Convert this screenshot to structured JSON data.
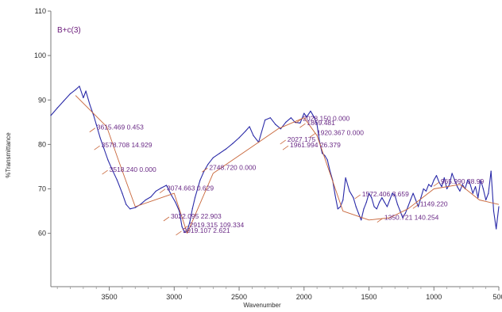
{
  "chart_data": {
    "type": "line",
    "title": "B+c(3)",
    "xlabel": "Wavenumber",
    "ylabel": "%Transmittance",
    "xlim": [
      3950,
      500
    ],
    "ylim": [
      48,
      110
    ],
    "x_ticks": [
      "3500",
      "3000",
      "2500",
      "2000",
      "1500",
      "1000",
      "500"
    ],
    "y_ticks": [
      "60",
      "70",
      "80",
      "90",
      "100",
      "110"
    ],
    "series": [
      {
        "color": "#2a2aa8",
        "x": [
          3950,
          3900,
          3850,
          3800,
          3760,
          3730,
          3700,
          3680,
          3650,
          3620,
          3600,
          3570,
          3540,
          3510,
          3480,
          3440,
          3400,
          3370,
          3340,
          3300,
          3260,
          3220,
          3180,
          3140,
          3100,
          3060,
          3020,
          2990,
          2960,
          2940,
          2920,
          2900,
          2880,
          2860,
          2840,
          2820,
          2800,
          2770,
          2740,
          2700,
          2650,
          2600,
          2550,
          2500,
          2450,
          2420,
          2390,
          2350,
          2300,
          2260,
          2220,
          2180,
          2140,
          2100,
          2070,
          2030,
          2000,
          1980,
          1950,
          1920,
          1900,
          1880,
          1860,
          1840,
          1820,
          1800,
          1780,
          1760,
          1740,
          1720,
          1700,
          1680,
          1650,
          1620,
          1600,
          1580,
          1560,
          1540,
          1520,
          1500,
          1480,
          1460,
          1440,
          1420,
          1400,
          1380,
          1360,
          1340,
          1320,
          1300,
          1280,
          1260,
          1240,
          1220,
          1200,
          1180,
          1160,
          1140,
          1120,
          1100,
          1080,
          1060,
          1040,
          1020,
          1000,
          980,
          960,
          940,
          920,
          900,
          880,
          860,
          840,
          820,
          800,
          780,
          760,
          740,
          720,
          700,
          680,
          660,
          640,
          620,
          600,
          580,
          560,
          540,
          520,
          500
        ],
        "values": [
          86.5,
          88.2,
          89.8,
          91.4,
          92.3,
          93.1,
          90.5,
          92.0,
          89.0,
          86.5,
          84.5,
          81.5,
          79.0,
          76.5,
          74.5,
          72.0,
          69.0,
          66.5,
          65.5,
          65.8,
          66.5,
          67.5,
          68.2,
          69.5,
          70.2,
          70.8,
          68.5,
          67.0,
          65.0,
          61.5,
          60.2,
          60.5,
          62.5,
          65.5,
          68.0,
          70.0,
          72.0,
          74.0,
          75.5,
          77.0,
          78.0,
          79.0,
          80.2,
          81.5,
          83.0,
          84.0,
          82.0,
          80.5,
          85.5,
          86.0,
          84.5,
          83.5,
          85.0,
          86.0,
          85.0,
          84.8,
          87.0,
          86.2,
          87.5,
          86.0,
          84.5,
          80.5,
          78.0,
          77.5,
          76.5,
          74.0,
          72.0,
          68.5,
          65.5,
          66.0,
          67.5,
          72.5,
          69.5,
          68.0,
          66.0,
          64.5,
          63.0,
          65.5,
          67.0,
          69.0,
          68.0,
          66.0,
          65.5,
          67.0,
          68.0,
          67.0,
          66.0,
          67.5,
          69.0,
          68.5,
          66.5,
          65.0,
          63.5,
          64.5,
          66.0,
          67.5,
          69.0,
          67.5,
          66.0,
          68.0,
          70.0,
          69.5,
          71.0,
          70.5,
          72.0,
          73.0,
          71.5,
          70.5,
          72.5,
          70.0,
          71.0,
          73.5,
          72.0,
          70.5,
          69.5,
          71.0,
          70.0,
          72.0,
          71.0,
          69.0,
          70.5,
          68.0,
          72.0,
          70.0,
          67.5,
          69.0,
          74.0,
          65.0,
          61.0,
          66.0
        ]
      },
      {
        "color": "#c8663a",
        "name": "",
        "x": [
          3760,
          3520,
          3430,
          3300,
          3000,
          2900,
          2700,
          2400,
          2200,
          2000,
          1900,
          1700,
          1500,
          1340,
          1200,
          1000,
          800,
          650,
          500
        ],
        "values": [
          91.0,
          84.0,
          76.5,
          66.0,
          69.0,
          60.0,
          73.5,
          79.5,
          83.5,
          86.0,
          82.0,
          65.0,
          63.0,
          63.5,
          65.5,
          70.0,
          71.0,
          67.5,
          66.5
        ]
      }
    ],
    "annotations": [
      {
        "text": "3615.469  0.453",
        "x": 3615,
        "y": 83.5
      },
      {
        "text": "3578.708  14.929",
        "x": 3579,
        "y": 79.5
      },
      {
        "text": "3518.240  0.000",
        "x": 3518,
        "y": 74.0
      },
      {
        "text": "3074.663  0.629",
        "x": 3075,
        "y": 69.8
      },
      {
        "text": "3022.095  22.903",
        "x": 3045,
        "y": 63.5
      },
      {
        "text": "2919.315  109.334",
        "x": 2900,
        "y": 61.5
      },
      {
        "text": "2919.107  2.621",
        "x": 2950,
        "y": 60.3
      },
      {
        "text": "2748.720  0.000",
        "x": 2749,
        "y": 74.5
      },
      {
        "text": "2027.175",
        "x": 2147,
        "y": 80.8
      },
      {
        "text": "2028.150  0.000",
        "x": 2028,
        "y": 85.5
      },
      {
        "text": "1869.481",
        "x": 1996,
        "y": 84.5
      },
      {
        "text": "1920.367  0.000",
        "x": 1920,
        "y": 82.3
      },
      {
        "text": "1961.994  26.379",
        "x": 2127,
        "y": 79.5
      },
      {
        "text": "1572.406  3.659",
        "x": 1572,
        "y": 68.5
      },
      {
        "text": "1350.721  140.254",
        "x": 1400,
        "y": 63.2
      },
      {
        "text": "1149.220",
        "x": 1125,
        "y": 66.3
      },
      {
        "text": "965.990  38.99",
        "x": 966,
        "y": 71.3
      }
    ],
    "grid": false,
    "legend": "none"
  }
}
